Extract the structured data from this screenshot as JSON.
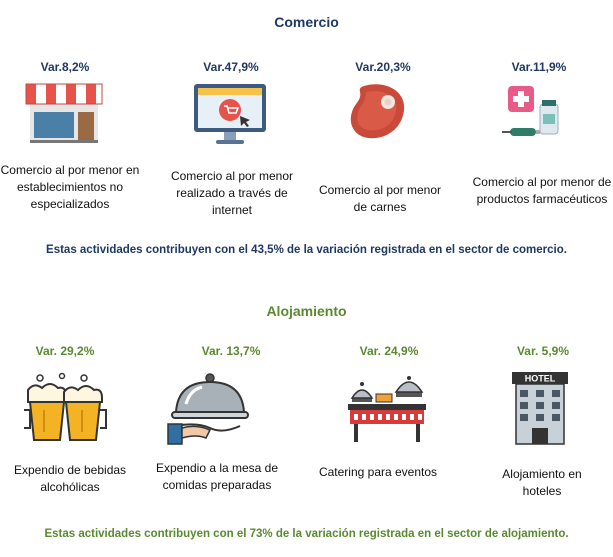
{
  "comercio": {
    "title": "Comercio",
    "items": [
      {
        "variation": "Var.8,2%",
        "label": "Comercio al por menor en establecimientos no especializados",
        "icon": "storefront-icon"
      },
      {
        "variation": "Var.47,9%",
        "label": "Comercio al por menor realizado a través de internet",
        "icon": "online-shopping-icon"
      },
      {
        "variation": "Var.20,3%",
        "label": "Comercio al por menor de carnes",
        "icon": "meat-steak-icon"
      },
      {
        "variation": "Var.11,9%",
        "label": "Comercio al por menor de productos farmacéuticos",
        "icon": "pharmacy-icon"
      }
    ],
    "footer": "Estas actividades contribuyen con el 43,5% de la variación registrada en el sector de comercio."
  },
  "alojamiento": {
    "title": "Alojamiento",
    "items": [
      {
        "variation": "Var. 29,2%",
        "label": "Expendio de bebidas alcohólicas",
        "icon": "beer-mugs-icon"
      },
      {
        "variation": "Var. 13,7%",
        "label": "Expendio a la mesa de comidas preparadas",
        "icon": "serving-cloche-icon"
      },
      {
        "variation": "Var. 24,9%",
        "label": "Catering para eventos",
        "icon": "catering-table-icon"
      },
      {
        "variation": "Var. 5,9%",
        "label": "Alojamiento en hoteles",
        "icon": "hotel-building-icon"
      }
    ],
    "footer": "Estas actividades contribuyen con el 73% de la variación registrada en el sector de alojamiento."
  },
  "colors": {
    "comercio_accent": "#1f3864",
    "alojamiento_accent": "#5a8a2f"
  }
}
